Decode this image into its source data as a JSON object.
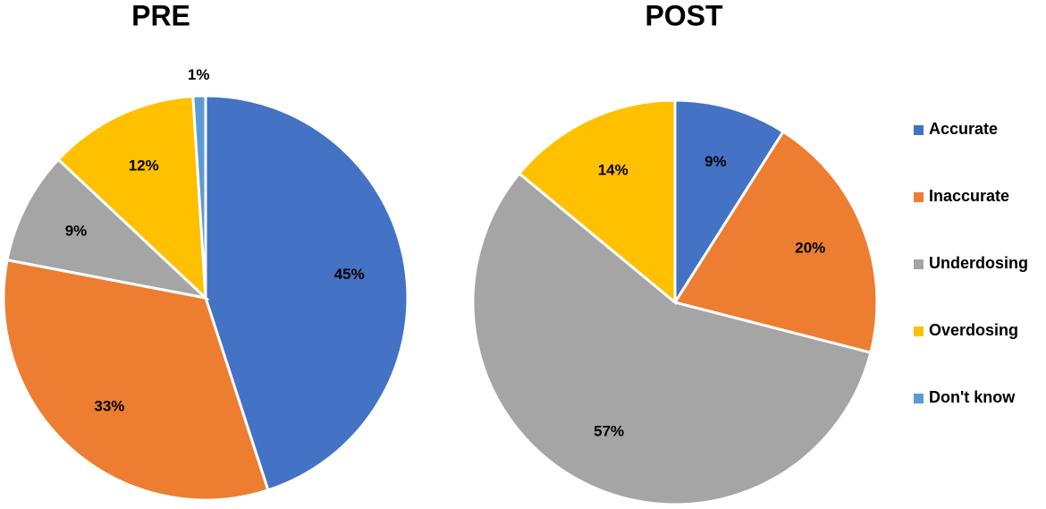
{
  "chart_data": [
    {
      "type": "pie",
      "title": "PRE",
      "categories": [
        "Accurate",
        "Inaccurate",
        "Underdosing",
        "Overdosing",
        "Don't know"
      ],
      "values": [
        45,
        33,
        9,
        12,
        1
      ],
      "value_labels": [
        "45%",
        "33%",
        "9%",
        "12%",
        "1%"
      ],
      "colors": [
        "#4472c4",
        "#ed7d31",
        "#a5a5a5",
        "#ffc000",
        "#5b9bd5"
      ],
      "legend": "right"
    },
    {
      "type": "pie",
      "title": "POST",
      "categories": [
        "Accurate",
        "Inaccurate",
        "Underdosing",
        "Overdosing"
      ],
      "values": [
        9,
        20,
        57,
        14
      ],
      "value_labels": [
        "9%",
        "20%",
        "57%",
        "14%"
      ],
      "colors": [
        "#4472c4",
        "#ed7d31",
        "#a5a5a5",
        "#ffc000"
      ]
    }
  ]
}
